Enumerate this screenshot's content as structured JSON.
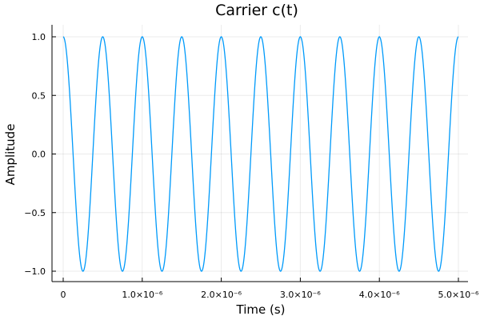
{
  "chart_data": {
    "type": "line",
    "title": "Carrier c(t)",
    "xlabel": "Time (s)",
    "ylabel": "Amplitude",
    "xlim": [
      0,
      5e-06
    ],
    "ylim": [
      -1.0,
      1.0
    ],
    "x_ticks": [
      {
        "value": 0,
        "label": "0"
      },
      {
        "value": 1e-06,
        "label": "1.0×10⁻⁶"
      },
      {
        "value": 2e-06,
        "label": "2.0×10⁻⁶"
      },
      {
        "value": 3e-06,
        "label": "3.0×10⁻⁶"
      },
      {
        "value": 4e-06,
        "label": "4.0×10⁻⁶"
      },
      {
        "value": 5e-06,
        "label": "5.0×10⁻⁶"
      }
    ],
    "y_ticks": [
      {
        "value": 1.0,
        "label": "1.0"
      },
      {
        "value": 0.5,
        "label": "0.5"
      },
      {
        "value": 0.0,
        "label": "0.0"
      },
      {
        "value": -0.5,
        "label": "−0.5"
      },
      {
        "value": -1.0,
        "label": "−1.0"
      }
    ],
    "grid": true,
    "legend": "none",
    "series": [
      {
        "function": "cos",
        "amplitude": 1.0,
        "frequency_hz": 2000000,
        "t_start": 0,
        "t_end": 5e-06,
        "color": "#009AFA"
      }
    ]
  }
}
